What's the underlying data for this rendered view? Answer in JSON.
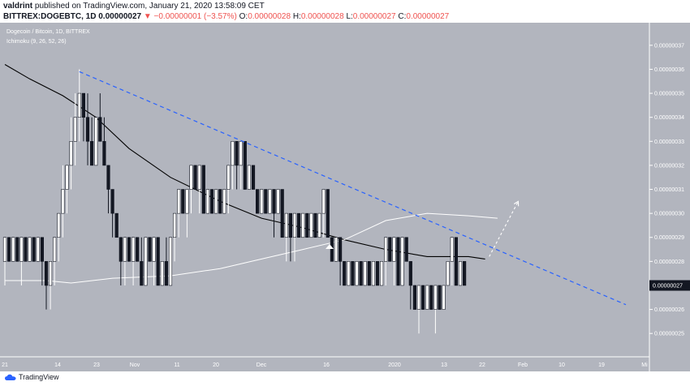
{
  "header": {
    "author": "valdrint",
    "published_text": "published on TradingView.com, January 21, 2020 13:58:09 CET",
    "symbol": "BITTREX:DOGEBTC, 1D",
    "last": "0.00000027",
    "change": "▼ −0.00000001 (−3.57%)",
    "o_label": "O:",
    "o": "0.00000028",
    "h_label": "H:",
    "h": "0.00000028",
    "l_label": "L:",
    "l": "0.00000027",
    "c_label": "C:",
    "c": "0.00000027"
  },
  "legend": {
    "title": "Dogecoin / Bitcoin, 1D, BITTREX",
    "indicator": "Ichimoku (9, 26, 52, 26)"
  },
  "brand": {
    "name": "TradingView"
  },
  "colors": {
    "chart_bg": "#b2b5be",
    "candle_up": "#ffffff",
    "candle_down": "#131722",
    "trendline": "#2962ff",
    "kijun": "#000000",
    "cloud_line": "#ffffff",
    "price_tag_bg": "#131722"
  },
  "chart_data": {
    "type": "candlestick",
    "title": "Dogecoin / Bitcoin, 1D, BITTREX",
    "x_ticks": [
      "21",
      "14",
      "23",
      "Nov",
      "11",
      "20",
      "Dec",
      "16",
      "2020",
      "13",
      "22",
      "Feb",
      "10",
      "19",
      "Mi"
    ],
    "y_ticks": [
      "0.00000037",
      "0.00000036",
      "0.00000035",
      "0.00000034",
      "0.00000033",
      "0.00000032",
      "0.00000031",
      "0.00000030",
      "0.00000029",
      "0.00000028",
      "0.00000026",
      "0.00000025"
    ],
    "ylim": [
      2.45e-07,
      3.74e-07
    ],
    "last_price": "0.00000027",
    "last_price_value": 2.7e-07,
    "candles": [
      {
        "o": 2.8e-07,
        "h": 2.9e-07,
        "l": 2.7e-07,
        "c": 2.9e-07
      },
      {
        "o": 2.9e-07,
        "h": 2.9e-07,
        "l": 2.8e-07,
        "c": 2.8e-07
      },
      {
        "o": 2.8e-07,
        "h": 2.9e-07,
        "l": 2.8e-07,
        "c": 2.9e-07
      },
      {
        "o": 2.9e-07,
        "h": 2.9e-07,
        "l": 2.8e-07,
        "c": 2.8e-07
      },
      {
        "o": 2.8e-07,
        "h": 2.9e-07,
        "l": 2.7e-07,
        "c": 2.9e-07
      },
      {
        "o": 2.9e-07,
        "h": 2.9e-07,
        "l": 2.8e-07,
        "c": 2.8e-07
      },
      {
        "o": 2.8e-07,
        "h": 2.9e-07,
        "l": 2.8e-07,
        "c": 2.9e-07
      },
      {
        "o": 2.9e-07,
        "h": 2.9e-07,
        "l": 2.8e-07,
        "c": 2.8e-07
      },
      {
        "o": 2.8e-07,
        "h": 2.9e-07,
        "l": 2.8e-07,
        "c": 2.9e-07
      },
      {
        "o": 2.9e-07,
        "h": 2.9e-07,
        "l": 2.7e-07,
        "c": 2.8e-07
      },
      {
        "o": 2.8e-07,
        "h": 2.8e-07,
        "l": 2.6e-07,
        "c": 2.7e-07
      },
      {
        "o": 2.7e-07,
        "h": 2.8e-07,
        "l": 2.6e-07,
        "c": 2.8e-07
      },
      {
        "o": 2.8e-07,
        "h": 2.9e-07,
        "l": 2.7e-07,
        "c": 2.9e-07
      },
      {
        "o": 2.9e-07,
        "h": 3e-07,
        "l": 2.8e-07,
        "c": 3e-07
      },
      {
        "o": 3e-07,
        "h": 3.2e-07,
        "l": 2.9e-07,
        "c": 3.1e-07
      },
      {
        "o": 3.1e-07,
        "h": 3.2e-07,
        "l": 3e-07,
        "c": 3.2e-07
      },
      {
        "o": 3.2e-07,
        "h": 3.4e-07,
        "l": 3.1e-07,
        "c": 3.3e-07
      },
      {
        "o": 3.3e-07,
        "h": 3.5e-07,
        "l": 3.2e-07,
        "c": 3.4e-07
      },
      {
        "o": 3.4e-07,
        "h": 3.6e-07,
        "l": 3.3e-07,
        "c": 3.5e-07
      },
      {
        "o": 3.5e-07,
        "h": 3.5e-07,
        "l": 3.3e-07,
        "c": 3.4e-07
      },
      {
        "o": 3.4e-07,
        "h": 3.5e-07,
        "l": 3.2e-07,
        "c": 3.3e-07
      },
      {
        "o": 3.3e-07,
        "h": 3.4e-07,
        "l": 3.2e-07,
        "c": 3.2e-07
      },
      {
        "o": 3.2e-07,
        "h": 3.4e-07,
        "l": 3.2e-07,
        "c": 3.4e-07
      },
      {
        "o": 3.4e-07,
        "h": 3.5e-07,
        "l": 3.3e-07,
        "c": 3.3e-07
      },
      {
        "o": 3.3e-07,
        "h": 3.4e-07,
        "l": 3.2e-07,
        "c": 3.2e-07
      },
      {
        "o": 3.2e-07,
        "h": 3.2e-07,
        "l": 3e-07,
        "c": 3.1e-07
      },
      {
        "o": 3.1e-07,
        "h": 3.1e-07,
        "l": 2.9e-07,
        "c": 3e-07
      },
      {
        "o": 3e-07,
        "h": 3e-07,
        "l": 2.9e-07,
        "c": 2.9e-07
      },
      {
        "o": 2.9e-07,
        "h": 2.9e-07,
        "l": 2.7e-07,
        "c": 2.8e-07
      },
      {
        "o": 2.8e-07,
        "h": 2.9e-07,
        "l": 2.7e-07,
        "c": 2.9e-07
      },
      {
        "o": 2.9e-07,
        "h": 2.9e-07,
        "l": 2.8e-07,
        "c": 2.8e-07
      },
      {
        "o": 2.8e-07,
        "h": 2.9e-07,
        "l": 2.7e-07,
        "c": 2.9e-07
      },
      {
        "o": 2.9e-07,
        "h": 2.9e-07,
        "l": 2.8e-07,
        "c": 2.8e-07
      },
      {
        "o": 2.8e-07,
        "h": 2.9e-07,
        "l": 2.7e-07,
        "c": 2.7e-07
      },
      {
        "o": 2.7e-07,
        "h": 2.9e-07,
        "l": 2.7e-07,
        "c": 2.9e-07
      },
      {
        "o": 2.9e-07,
        "h": 2.9e-07,
        "l": 2.8e-07,
        "c": 2.8e-07
      },
      {
        "o": 2.8e-07,
        "h": 2.9e-07,
        "l": 2.7e-07,
        "c": 2.9e-07
      },
      {
        "o": 2.9e-07,
        "h": 2.9e-07,
        "l": 2.7e-07,
        "c": 2.7e-07
      },
      {
        "o": 2.7e-07,
        "h": 2.8e-07,
        "l": 2.7e-07,
        "c": 2.8e-07
      },
      {
        "o": 2.8e-07,
        "h": 2.9e-07,
        "l": 2.7e-07,
        "c": 2.7e-07
      },
      {
        "o": 2.7e-07,
        "h": 2.9e-07,
        "l": 2.7e-07,
        "c": 2.9e-07
      },
      {
        "o": 2.9e-07,
        "h": 3e-07,
        "l": 2.8e-07,
        "c": 3e-07
      },
      {
        "o": 3e-07,
        "h": 3.1e-07,
        "l": 2.9e-07,
        "c": 3.1e-07
      },
      {
        "o": 3.1e-07,
        "h": 3.1e-07,
        "l": 3e-07,
        "c": 3e-07
      },
      {
        "o": 3e-07,
        "h": 3.1e-07,
        "l": 2.9e-07,
        "c": 3.1e-07
      },
      {
        "o": 3.1e-07,
        "h": 3.2e-07,
        "l": 3e-07,
        "c": 3.2e-07
      },
      {
        "o": 3.2e-07,
        "h": 3.2e-07,
        "l": 3.1e-07,
        "c": 3.1e-07
      },
      {
        "o": 3.1e-07,
        "h": 3.2e-07,
        "l": 3e-07,
        "c": 3.2e-07
      },
      {
        "o": 3.2e-07,
        "h": 3.2e-07,
        "l": 3e-07,
        "c": 3e-07
      },
      {
        "o": 3e-07,
        "h": 3.1e-07,
        "l": 3e-07,
        "c": 3.1e-07
      },
      {
        "o": 3.1e-07,
        "h": 3.1e-07,
        "l": 3e-07,
        "c": 3e-07
      },
      {
        "o": 3e-07,
        "h": 3.1e-07,
        "l": 3e-07,
        "c": 3.1e-07
      },
      {
        "o": 3.1e-07,
        "h": 3.1e-07,
        "l": 3e-07,
        "c": 3e-07
      },
      {
        "o": 3e-07,
        "h": 3.1e-07,
        "l": 3e-07,
        "c": 3.1e-07
      },
      {
        "o": 3.1e-07,
        "h": 3.2e-07,
        "l": 3e-07,
        "c": 3.2e-07
      },
      {
        "o": 3.2e-07,
        "h": 3.3e-07,
        "l": 3.1e-07,
        "c": 3.3e-07
      },
      {
        "o": 3.3e-07,
        "h": 3.3e-07,
        "l": 3.1e-07,
        "c": 3.2e-07
      },
      {
        "o": 3.2e-07,
        "h": 3.3e-07,
        "l": 3.1e-07,
        "c": 3.3e-07
      },
      {
        "o": 3.3e-07,
        "h": 3.3e-07,
        "l": 3.1e-07,
        "c": 3.1e-07
      },
      {
        "o": 3.1e-07,
        "h": 3.2e-07,
        "l": 3.1e-07,
        "c": 3.2e-07
      },
      {
        "o": 3.2e-07,
        "h": 3.2e-07,
        "l": 3.1e-07,
        "c": 3.1e-07
      },
      {
        "o": 3.1e-07,
        "h": 3.1e-07,
        "l": 3e-07,
        "c": 3e-07
      },
      {
        "o": 3e-07,
        "h": 3.1e-07,
        "l": 3e-07,
        "c": 3.1e-07
      },
      {
        "o": 3.1e-07,
        "h": 3.1e-07,
        "l": 3e-07,
        "c": 3e-07
      },
      {
        "o": 3e-07,
        "h": 3.1e-07,
        "l": 3e-07,
        "c": 3.1e-07
      },
      {
        "o": 3.1e-07,
        "h": 3.1e-07,
        "l": 2.9e-07,
        "c": 3e-07
      },
      {
        "o": 3e-07,
        "h": 3.1e-07,
        "l": 3e-07,
        "c": 3.1e-07
      },
      {
        "o": 3.1e-07,
        "h": 3.1e-07,
        "l": 2.9e-07,
        "c": 2.9e-07
      },
      {
        "o": 2.9e-07,
        "h": 3e-07,
        "l": 2.8e-07,
        "c": 3e-07
      },
      {
        "o": 3e-07,
        "h": 3e-07,
        "l": 2.8e-07,
        "c": 2.9e-07
      },
      {
        "o": 2.9e-07,
        "h": 3e-07,
        "l": 2.8e-07,
        "c": 3e-07
      },
      {
        "o": 3e-07,
        "h": 3e-07,
        "l": 2.9e-07,
        "c": 2.9e-07
      },
      {
        "o": 2.9e-07,
        "h": 3e-07,
        "l": 2.9e-07,
        "c": 3e-07
      },
      {
        "o": 3e-07,
        "h": 3e-07,
        "l": 2.9e-07,
        "c": 2.9e-07
      },
      {
        "o": 2.9e-07,
        "h": 3e-07,
        "l": 2.9e-07,
        "c": 3e-07
      },
      {
        "o": 3e-07,
        "h": 3e-07,
        "l": 2.9e-07,
        "c": 2.9e-07
      },
      {
        "o": 2.9e-07,
        "h": 3e-07,
        "l": 2.9e-07,
        "c": 3e-07
      },
      {
        "o": 3e-07,
        "h": 3.1e-07,
        "l": 2.9e-07,
        "c": 3.1e-07
      },
      {
        "o": 3.1e-07,
        "h": 3.1e-07,
        "l": 2.9e-07,
        "c": 2.9e-07
      },
      {
        "o": 2.9e-07,
        "h": 2.9e-07,
        "l": 2.8e-07,
        "c": 2.8e-07
      },
      {
        "o": 2.8e-07,
        "h": 2.9e-07,
        "l": 2.8e-07,
        "c": 2.9e-07
      },
      {
        "o": 2.9e-07,
        "h": 2.9e-07,
        "l": 2.7e-07,
        "c": 2.8e-07
      },
      {
        "o": 2.8e-07,
        "h": 2.8e-07,
        "l": 2.7e-07,
        "c": 2.7e-07
      },
      {
        "o": 2.7e-07,
        "h": 2.8e-07,
        "l": 2.7e-07,
        "c": 2.8e-07
      },
      {
        "o": 2.8e-07,
        "h": 2.8e-07,
        "l": 2.7e-07,
        "c": 2.7e-07
      },
      {
        "o": 2.7e-07,
        "h": 2.8e-07,
        "l": 2.7e-07,
        "c": 2.8e-07
      },
      {
        "o": 2.8e-07,
        "h": 2.8e-07,
        "l": 2.7e-07,
        "c": 2.7e-07
      },
      {
        "o": 2.7e-07,
        "h": 2.8e-07,
        "l": 2.7e-07,
        "c": 2.8e-07
      },
      {
        "o": 2.8e-07,
        "h": 2.8e-07,
        "l": 2.7e-07,
        "c": 2.7e-07
      },
      {
        "o": 2.7e-07,
        "h": 2.8e-07,
        "l": 2.7e-07,
        "c": 2.8e-07
      },
      {
        "o": 2.8e-07,
        "h": 2.8e-07,
        "l": 2.7e-07,
        "c": 2.7e-07
      },
      {
        "o": 2.7e-07,
        "h": 2.8e-07,
        "l": 2.7e-07,
        "c": 2.8e-07
      },
      {
        "o": 2.8e-07,
        "h": 2.9e-07,
        "l": 2.7e-07,
        "c": 2.9e-07
      },
      {
        "o": 2.9e-07,
        "h": 2.9e-07,
        "l": 2.8e-07,
        "c": 2.8e-07
      },
      {
        "o": 2.8e-07,
        "h": 2.9e-07,
        "l": 2.7e-07,
        "c": 2.9e-07
      },
      {
        "o": 2.9e-07,
        "h": 2.9e-07,
        "l": 2.7e-07,
        "c": 2.7e-07
      },
      {
        "o": 2.7e-07,
        "h": 2.9e-07,
        "l": 2.7e-07,
        "c": 2.9e-07
      },
      {
        "o": 2.9e-07,
        "h": 2.9e-07,
        "l": 2.8e-07,
        "c": 2.8e-07
      },
      {
        "o": 2.8e-07,
        "h": 2.8e-07,
        "l": 2.6e-07,
        "c": 2.7e-07
      },
      {
        "o": 2.7e-07,
        "h": 2.7e-07,
        "l": 2.6e-07,
        "c": 2.6e-07
      },
      {
        "o": 2.6e-07,
        "h": 2.7e-07,
        "l": 2.5e-07,
        "c": 2.7e-07
      },
      {
        "o": 2.7e-07,
        "h": 2.7e-07,
        "l": 2.6e-07,
        "c": 2.6e-07
      },
      {
        "o": 2.6e-07,
        "h": 2.7e-07,
        "l": 2.6e-07,
        "c": 2.7e-07
      },
      {
        "o": 2.7e-07,
        "h": 2.7e-07,
        "l": 2.6e-07,
        "c": 2.6e-07
      },
      {
        "o": 2.6e-07,
        "h": 2.7e-07,
        "l": 2.5e-07,
        "c": 2.7e-07
      },
      {
        "o": 2.7e-07,
        "h": 2.7e-07,
        "l": 2.6e-07,
        "c": 2.6e-07
      },
      {
        "o": 2.6e-07,
        "h": 2.7e-07,
        "l": 2.6e-07,
        "c": 2.7e-07
      },
      {
        "o": 2.7e-07,
        "h": 2.8e-07,
        "l": 2.7e-07,
        "c": 2.8e-07
      },
      {
        "o": 2.8e-07,
        "h": 2.9e-07,
        "l": 2.7e-07,
        "c": 2.9e-07
      },
      {
        "o": 2.9e-07,
        "h": 2.9e-07,
        "l": 2.7e-07,
        "c": 2.7e-07
      },
      {
        "o": 2.7e-07,
        "h": 2.8e-07,
        "l": 2.7e-07,
        "c": 2.8e-07
      },
      {
        "o": 2.8e-07,
        "h": 2.8e-07,
        "l": 2.7e-07,
        "c": 2.7e-07
      }
    ],
    "kijun": [
      [
        0,
        3.62e-07
      ],
      [
        6,
        3.56e-07
      ],
      [
        14,
        3.49e-07
      ],
      [
        22,
        3.4e-07
      ],
      [
        30,
        3.27e-07
      ],
      [
        40,
        3.15e-07
      ],
      [
        52,
        3.05e-07
      ],
      [
        62,
        2.98e-07
      ],
      [
        72,
        2.94e-07
      ],
      [
        82,
        2.89e-07
      ],
      [
        92,
        2.85e-07
      ],
      [
        102,
        2.82e-07
      ],
      [
        112,
        2.82e-07
      ],
      [
        116,
        2.81e-07
      ]
    ],
    "cloud_line": [
      [
        0,
        2.72e-07
      ],
      [
        10,
        2.72e-07
      ],
      [
        16,
        2.71e-07
      ],
      [
        26,
        2.73e-07
      ],
      [
        40,
        2.74e-07
      ],
      [
        52,
        2.77e-07
      ],
      [
        62,
        2.81e-07
      ],
      [
        72,
        2.85e-07
      ],
      [
        82,
        2.89e-07
      ],
      [
        92,
        2.97e-07
      ],
      [
        102,
        3e-07
      ],
      [
        112,
        2.99e-07
      ],
      [
        119,
        2.98e-07
      ]
    ],
    "trendline": [
      [
        18,
        3.59e-07
      ],
      [
        150,
        2.62e-07
      ]
    ],
    "projection": [
      [
        117,
        2.82e-07
      ],
      [
        124,
        3.05e-07
      ]
    ]
  }
}
